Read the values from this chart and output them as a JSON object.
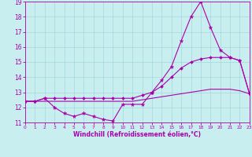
{
  "xlabel": "Windchill (Refroidissement éolien,°C)",
  "bg_color": "#c8eef0",
  "line_color": "#aa00aa",
  "grid_color": "#a0d8dc",
  "xmin": 0,
  "xmax": 23,
  "ymin": 11,
  "ymax": 19,
  "yticks": [
    11,
    12,
    13,
    14,
    15,
    16,
    17,
    18,
    19
  ],
  "xticks": [
    0,
    1,
    2,
    3,
    4,
    5,
    6,
    7,
    8,
    9,
    10,
    11,
    12,
    13,
    14,
    15,
    16,
    17,
    18,
    19,
    20,
    21,
    22,
    23
  ],
  "series1_x": [
    0,
    1,
    2,
    3,
    4,
    5,
    6,
    7,
    8,
    9,
    10,
    11,
    12,
    13,
    14,
    15,
    16,
    17,
    18,
    19,
    20,
    21,
    22,
    23
  ],
  "series1_y": [
    12.4,
    12.4,
    12.6,
    12.0,
    11.6,
    11.4,
    11.6,
    11.4,
    11.2,
    11.1,
    12.2,
    12.2,
    12.2,
    13.0,
    13.8,
    14.7,
    16.4,
    18.0,
    19.0,
    17.3,
    15.8,
    15.3,
    15.1,
    12.9
  ],
  "series2_x": [
    0,
    1,
    2,
    3,
    4,
    5,
    6,
    7,
    8,
    9,
    10,
    11,
    12,
    13,
    14,
    15,
    16,
    17,
    18,
    19,
    20,
    21,
    22,
    23
  ],
  "series2_y": [
    12.4,
    12.4,
    12.6,
    12.6,
    12.6,
    12.6,
    12.6,
    12.6,
    12.6,
    12.6,
    12.6,
    12.6,
    12.8,
    13.0,
    13.4,
    14.0,
    14.6,
    15.0,
    15.2,
    15.3,
    15.3,
    15.3,
    15.1,
    12.9
  ],
  "series3_x": [
    0,
    1,
    2,
    3,
    4,
    5,
    6,
    7,
    8,
    9,
    10,
    11,
    12,
    13,
    14,
    15,
    16,
    17,
    18,
    19,
    20,
    21,
    22,
    23
  ],
  "series3_y": [
    12.4,
    12.4,
    12.4,
    12.4,
    12.4,
    12.4,
    12.4,
    12.4,
    12.4,
    12.4,
    12.4,
    12.4,
    12.5,
    12.6,
    12.7,
    12.8,
    12.9,
    13.0,
    13.1,
    13.2,
    13.2,
    13.2,
    13.1,
    12.9
  ],
  "xlabel_fontsize": 5.5,
  "ytick_fontsize": 5.5,
  "xtick_fontsize": 4.2
}
